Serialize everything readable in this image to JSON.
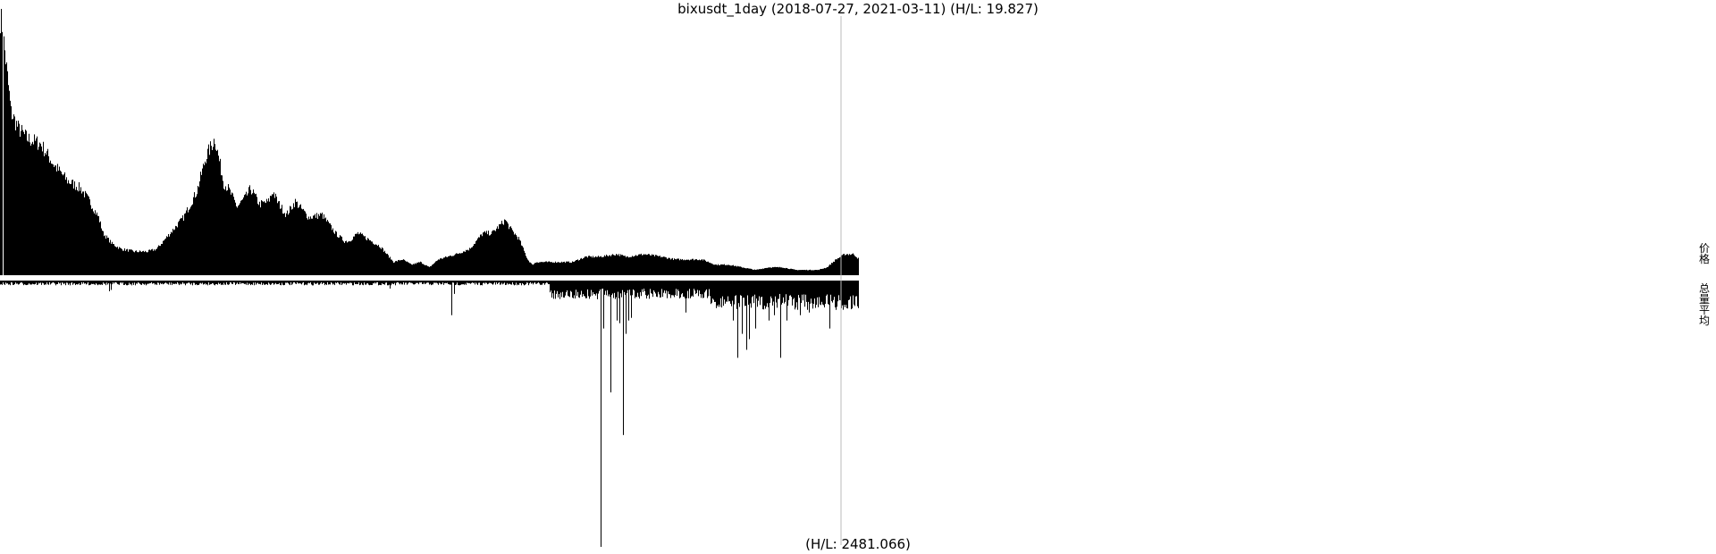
{
  "title": "bixusdt_1day (2018-07-27, 2021-03-11) (H/L: 19.827)",
  "bottom_label": "(H/L: 2481.066)",
  "ylabel_top": "价格",
  "ylabel_bottom": "总量平均",
  "colors": {
    "bars": "#000000",
    "marker": "#bbbbbb",
    "background": "#ffffff"
  },
  "chart_data": [
    {
      "type": "area",
      "title": "bixusdt_1day (2018-07-27, 2021-03-11) (H/L: 19.827)",
      "xlabel": "",
      "ylabel": "价格",
      "x_range": [
        "2018-07-27",
        "2021-03-11"
      ],
      "hl_ratio": 19.827,
      "shape_note": "daily price bars, early spike then decline",
      "anchors_x": [
        0,
        2,
        6,
        12,
        20,
        30,
        45,
        60,
        75,
        90,
        100,
        110,
        115,
        125,
        135,
        150,
        165,
        175,
        185,
        205,
        220,
        230,
        240,
        250,
        255,
        265,
        275,
        280,
        290,
        300,
        305,
        310,
        320,
        330,
        340,
        345,
        360,
        375,
        385,
        390,
        400,
        410,
        425,
        440,
        450,
        460,
        470,
        480,
        490,
        510,
        525,
        540,
        550,
        565,
        570,
        580,
        590,
        595,
        600,
        620,
        640,
        655,
        665,
        670,
        690,
        700,
        720,
        740,
        755,
        770,
        785,
        800,
        815,
        830,
        845,
        860,
        875,
        890,
        905,
        915,
        925,
        935,
        945,
        955,
        961
      ],
      "anchors_v": [
        0.98,
        0.95,
        0.82,
        0.62,
        0.56,
        0.52,
        0.5,
        0.42,
        0.36,
        0.33,
        0.28,
        0.22,
        0.16,
        0.12,
        0.1,
        0.09,
        0.09,
        0.1,
        0.14,
        0.22,
        0.32,
        0.45,
        0.52,
        0.35,
        0.33,
        0.26,
        0.3,
        0.33,
        0.27,
        0.28,
        0.32,
        0.28,
        0.23,
        0.28,
        0.24,
        0.22,
        0.23,
        0.16,
        0.13,
        0.13,
        0.16,
        0.14,
        0.11,
        0.05,
        0.06,
        0.04,
        0.05,
        0.03,
        0.06,
        0.08,
        0.1,
        0.16,
        0.16,
        0.21,
        0.18,
        0.14,
        0.06,
        0.04,
        0.05,
        0.05,
        0.05,
        0.07,
        0.07,
        0.07,
        0.08,
        0.07,
        0.08,
        0.07,
        0.06,
        0.06,
        0.06,
        0.04,
        0.04,
        0.03,
        0.02,
        0.03,
        0.03,
        0.02,
        0.02,
        0.02,
        0.03,
        0.06,
        0.08,
        0.08,
        0.06
      ]
    },
    {
      "type": "bar",
      "title": "(H/L: 2481.066)",
      "xlabel": "",
      "ylabel": "总量平均",
      "x_range": [
        "2018-07-27",
        "2021-03-11"
      ],
      "hl_ratio": 2481.066,
      "base_level": 0.012,
      "spikes": [
        {
          "x": 122,
          "v": 0.04
        },
        {
          "x": 124,
          "v": 0.035
        },
        {
          "x": 436,
          "v": 0.03
        },
        {
          "x": 505,
          "v": 0.13
        },
        {
          "x": 508,
          "v": 0.05
        },
        {
          "x": 625,
          "v": 0.05
        },
        {
          "x": 660,
          "v": 0.06
        },
        {
          "x": 668,
          "v": 0.07
        },
        {
          "x": 672,
          "v": 1.0
        },
        {
          "x": 675,
          "v": 0.18
        },
        {
          "x": 683,
          "v": 0.42
        },
        {
          "x": 690,
          "v": 0.15
        },
        {
          "x": 693,
          "v": 0.16
        },
        {
          "x": 697,
          "v": 0.58
        },
        {
          "x": 700,
          "v": 0.2
        },
        {
          "x": 703,
          "v": 0.15
        },
        {
          "x": 706,
          "v": 0.14
        },
        {
          "x": 767,
          "v": 0.12
        },
        {
          "x": 800,
          "v": 0.08
        },
        {
          "x": 820,
          "v": 0.15
        },
        {
          "x": 825,
          "v": 0.29
        },
        {
          "x": 830,
          "v": 0.2
        },
        {
          "x": 835,
          "v": 0.26
        },
        {
          "x": 838,
          "v": 0.22
        },
        {
          "x": 845,
          "v": 0.18
        },
        {
          "x": 860,
          "v": 0.15
        },
        {
          "x": 866,
          "v": 0.13
        },
        {
          "x": 873,
          "v": 0.29
        },
        {
          "x": 880,
          "v": 0.15
        },
        {
          "x": 895,
          "v": 0.13
        },
        {
          "x": 905,
          "v": 0.12
        },
        {
          "x": 915,
          "v": 0.1
        },
        {
          "x": 928,
          "v": 0.18
        },
        {
          "x": 935,
          "v": 0.11
        },
        {
          "x": 945,
          "v": 0.1
        },
        {
          "x": 955,
          "v": 0.09
        }
      ],
      "dense_region": [
        615,
        961
      ]
    }
  ]
}
